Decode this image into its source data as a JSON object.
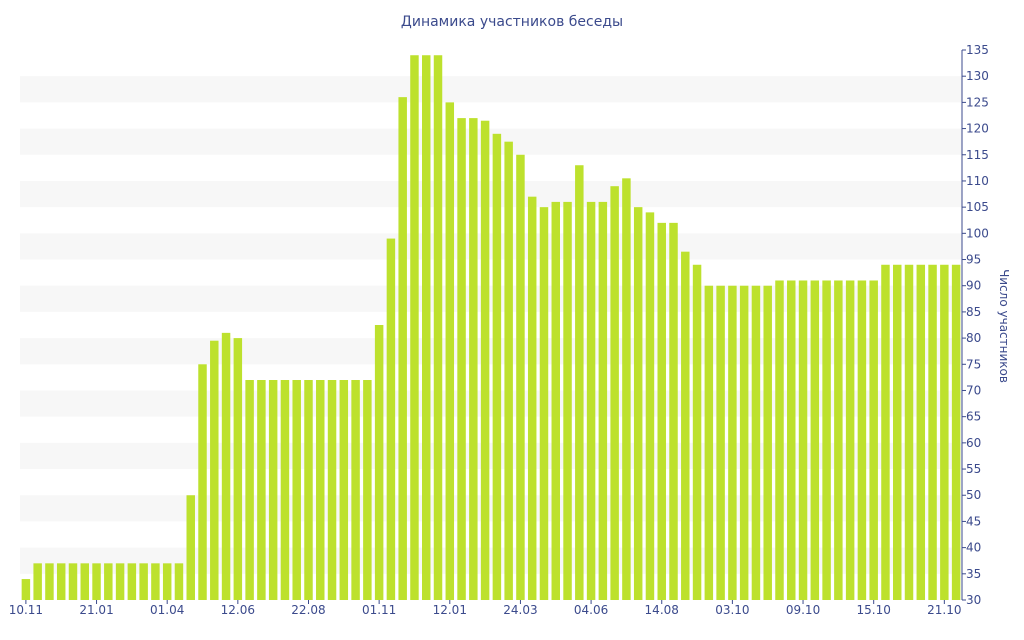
{
  "chart_data": {
    "type": "bar",
    "title": "Динамика участников беседы",
    "xlabel": "",
    "ylabel": "Число участников",
    "y_axis_side": "right",
    "ylim": [
      30,
      135
    ],
    "y_step": 5,
    "grid": "alternating horizontal bands",
    "bar_color": "#bde12d",
    "x_tick_labels": [
      "10.11",
      "21.01",
      "01.04",
      "12.06",
      "22.08",
      "01.11",
      "12.01",
      "24.03",
      "04.06",
      "14.08",
      "03.10",
      "09.10",
      "15.10",
      "21.10"
    ],
    "series": [
      {
        "values": [
          34,
          37,
          37,
          37,
          37,
          37,
          37,
          37,
          37,
          37,
          37,
          37,
          37,
          37,
          50,
          75,
          79.5,
          81,
          80,
          72,
          72,
          72,
          72,
          72,
          72,
          72,
          72,
          72,
          72,
          72,
          82.5,
          99,
          126,
          134,
          134,
          134,
          125,
          122,
          122,
          121.5,
          119,
          117.5,
          115,
          107,
          105,
          106,
          106,
          113,
          106,
          106,
          109,
          110.5,
          105,
          104,
          102,
          102,
          96.5,
          94,
          90,
          90,
          90,
          90,
          90,
          90,
          91,
          91,
          91,
          91,
          91,
          91,
          91,
          91,
          91,
          94,
          94,
          94,
          94,
          94,
          94,
          94
        ]
      }
    ]
  },
  "colors": {
    "text": "#3b4a8c",
    "band": "#f7f7f7",
    "axis": "#3b4a8c"
  }
}
